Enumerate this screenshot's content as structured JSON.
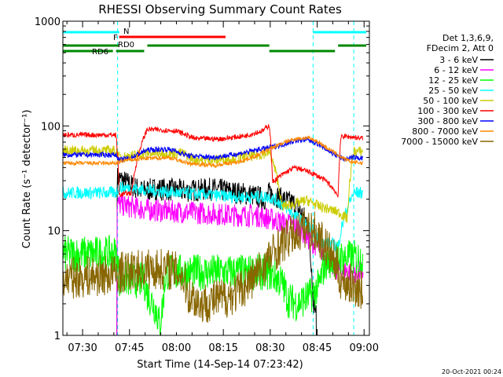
{
  "chart_data": {
    "type": "line",
    "title": "RHESSI Observing Summary Count Rates",
    "xlabel": "Start Time (14-Sep-14 07:23:42)",
    "ylabel": "Count Rate (s⁻¹ detector⁻¹)",
    "ylog": true,
    "ylim": [
      1,
      1000
    ],
    "xlim_minutes": [
      0,
      98
    ],
    "x_ticks": [
      {
        "minute": 6.3,
        "label": "07:30"
      },
      {
        "minute": 21.3,
        "label": "07:45"
      },
      {
        "minute": 36.3,
        "label": "08:00"
      },
      {
        "minute": 51.3,
        "label": "08:15"
      },
      {
        "minute": 66.3,
        "label": "08:30"
      },
      {
        "minute": 81.3,
        "label": "08:45"
      },
      {
        "minute": 96.3,
        "label": "09:00"
      }
    ],
    "y_ticks": [
      {
        "value": 1,
        "label": "1"
      },
      {
        "value": 10,
        "label": "10"
      },
      {
        "value": 100,
        "label": "100"
      },
      {
        "value": 1000,
        "label": "1000"
      }
    ],
    "legend_header": [
      "Det 1,3,6,9,",
      "FDecim 2, Att 0"
    ],
    "legend_position": "right",
    "series": [
      {
        "name": "3 - 6 keV",
        "color": "#000000",
        "points": [
          [
            17,
            0
          ],
          [
            17.5,
            32
          ],
          [
            21,
            28
          ],
          [
            25,
            24
          ],
          [
            30,
            25
          ],
          [
            40,
            24
          ],
          [
            48,
            25
          ],
          [
            60,
            22
          ],
          [
            65,
            20
          ],
          [
            66,
            23
          ],
          [
            70,
            20
          ],
          [
            74,
            18
          ],
          [
            78,
            12
          ],
          [
            80,
            2
          ],
          [
            82,
            0
          ]
        ]
      },
      {
        "name": "6 - 12 keV",
        "color": "#ff00ff",
        "points": [
          [
            17,
            0
          ],
          [
            17.5,
            18
          ],
          [
            21,
            17
          ],
          [
            26,
            16
          ],
          [
            31,
            15.5
          ],
          [
            40,
            15
          ],
          [
            48,
            14.5
          ],
          [
            56,
            14
          ],
          [
            62,
            14
          ],
          [
            66,
            13
          ],
          [
            70,
            12
          ],
          [
            75,
            11
          ],
          [
            79,
            8
          ],
          [
            82,
            7
          ],
          [
            84,
            5.5
          ],
          [
            86,
            4.5
          ],
          [
            88,
            4.2
          ],
          [
            90,
            4.2
          ],
          [
            93,
            4
          ],
          [
            96,
            4
          ]
        ]
      },
      {
        "name": "12 - 25 keV",
        "color": "#00ff00",
        "points": [
          [
            0,
            6
          ],
          [
            17,
            6
          ],
          [
            18,
            3.5
          ],
          [
            26,
            3.3
          ],
          [
            27,
            2.5
          ],
          [
            30,
            1.7
          ],
          [
            31,
            1.2
          ],
          [
            32,
            2
          ],
          [
            33,
            4
          ],
          [
            40,
            4
          ],
          [
            50,
            4
          ],
          [
            60,
            4
          ],
          [
            66,
            4
          ],
          [
            70,
            3.2
          ],
          [
            72,
            2.2
          ],
          [
            75,
            2
          ],
          [
            78,
            2.3
          ],
          [
            80,
            2.5
          ],
          [
            82,
            3
          ],
          [
            84,
            5
          ],
          [
            88,
            5.5
          ],
          [
            93,
            5.5
          ],
          [
            96,
            5.5
          ]
        ]
      },
      {
        "name": "25 - 50 keV",
        "color": "#00ffff",
        "points": [
          [
            0,
            23
          ],
          [
            17,
            23
          ],
          [
            18,
            26
          ],
          [
            27,
            24.5
          ],
          [
            36,
            23
          ],
          [
            46,
            22
          ],
          [
            56,
            21
          ],
          [
            66,
            21
          ],
          [
            70,
            18
          ],
          [
            74,
            14
          ],
          [
            77,
            12
          ],
          [
            80,
            10
          ],
          [
            82,
            8
          ],
          [
            86,
            7.5
          ],
          [
            88,
            7
          ],
          [
            93,
            23
          ],
          [
            96,
            23
          ]
        ]
      },
      {
        "name": "50 - 100 keV",
        "color": "#cccc00",
        "points": [
          [
            0,
            58
          ],
          [
            17,
            58
          ],
          [
            18,
            50
          ],
          [
            22,
            52
          ],
          [
            27,
            55
          ],
          [
            38,
            55
          ],
          [
            42,
            48
          ],
          [
            48,
            47
          ],
          [
            56,
            50
          ],
          [
            62,
            52
          ],
          [
            66,
            56
          ],
          [
            70,
            17
          ],
          [
            74,
            18
          ],
          [
            78,
            19.5
          ],
          [
            82,
            17
          ],
          [
            85,
            16
          ],
          [
            88,
            15
          ],
          [
            91,
            13
          ],
          [
            93,
            57
          ],
          [
            96,
            57
          ]
        ]
      },
      {
        "name": "100 - 300 keV",
        "color": "#ff0000",
        "points": [
          [
            0,
            82
          ],
          [
            17,
            82
          ],
          [
            18,
            22
          ],
          [
            22,
            23
          ],
          [
            27,
            93
          ],
          [
            36,
            90
          ],
          [
            42,
            76
          ],
          [
            50,
            75
          ],
          [
            58,
            80
          ],
          [
            64,
            90
          ],
          [
            66,
            102
          ],
          [
            67,
            29
          ],
          [
            70,
            34
          ],
          [
            74,
            40
          ],
          [
            77,
            38
          ],
          [
            80,
            35
          ],
          [
            84,
            30
          ],
          [
            87,
            24
          ],
          [
            88,
            21
          ],
          [
            89,
            80
          ],
          [
            93,
            78
          ],
          [
            96,
            76
          ]
        ]
      },
      {
        "name": "300 - 800 keV",
        "color": "#0000ff",
        "points": [
          [
            0,
            53
          ],
          [
            17,
            53
          ],
          [
            18,
            47
          ],
          [
            22,
            50
          ],
          [
            27,
            59
          ],
          [
            34,
            60
          ],
          [
            40,
            52
          ],
          [
            48,
            50
          ],
          [
            56,
            54
          ],
          [
            62,
            59
          ],
          [
            66,
            62
          ],
          [
            70,
            66
          ],
          [
            74,
            72
          ],
          [
            78,
            74
          ],
          [
            81,
            69
          ],
          [
            84,
            60
          ],
          [
            87,
            53
          ],
          [
            90,
            48
          ],
          [
            93,
            50
          ],
          [
            96,
            49
          ]
        ]
      },
      {
        "name": "800 - 7000 keV",
        "color": "#ff8800",
        "points": [
          [
            0,
            44
          ],
          [
            17,
            44
          ],
          [
            20,
            47
          ],
          [
            27,
            49
          ],
          [
            34,
            50
          ],
          [
            40,
            44
          ],
          [
            48,
            42
          ],
          [
            56,
            45
          ],
          [
            62,
            52
          ],
          [
            66,
            60
          ],
          [
            70,
            68
          ],
          [
            74,
            75
          ],
          [
            78,
            77
          ],
          [
            81,
            72
          ],
          [
            84,
            63
          ],
          [
            87,
            55
          ],
          [
            90,
            48
          ],
          [
            93,
            45
          ],
          [
            96,
            44
          ]
        ]
      },
      {
        "name": "7000 - 15000 keV",
        "color": "#886600",
        "points": [
          [
            0,
            3.5
          ],
          [
            17,
            3.8
          ],
          [
            19,
            4
          ],
          [
            27,
            4.3
          ],
          [
            34,
            4.3
          ],
          [
            38,
            3.8
          ],
          [
            40,
            2.5
          ],
          [
            44,
            2
          ],
          [
            52,
            2.3
          ],
          [
            56,
            2.6
          ],
          [
            60,
            3.3
          ],
          [
            64,
            4.5
          ],
          [
            68,
            6.5
          ],
          [
            72,
            8.5
          ],
          [
            76,
            10
          ],
          [
            78,
            10.5
          ],
          [
            81,
            9.5
          ],
          [
            84,
            7
          ],
          [
            87,
            5
          ],
          [
            89,
            3.3
          ],
          [
            93,
            3
          ],
          [
            96,
            2.6
          ]
        ]
      }
    ],
    "status_bars": [
      {
        "label": "N",
        "color": "#00ffff",
        "segments": [
          [
            0,
            18
          ],
          [
            80,
            97
          ]
        ]
      },
      {
        "label": "F",
        "color": "#ff0000",
        "segments": [
          [
            18,
            52
          ]
        ]
      },
      {
        "label": "RD0",
        "color": "#008800",
        "segments": [
          [
            0,
            18
          ],
          [
            27,
            66
          ],
          [
            88,
            97
          ]
        ]
      },
      {
        "label": "RD6",
        "color": "#008800",
        "segments": [
          [
            0,
            16
          ],
          [
            17,
            26
          ],
          [
            66,
            87
          ]
        ]
      }
    ],
    "event_markers_minutes": [
      17.5,
      80,
      93
    ]
  },
  "footer_date": "20-Oct-2021 00:24"
}
